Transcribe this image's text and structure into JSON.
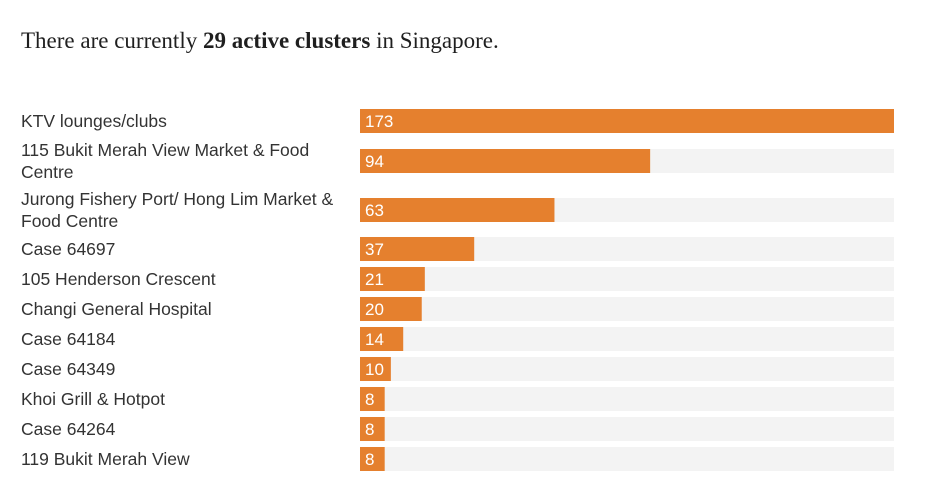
{
  "headline": {
    "prefix": "There are currently ",
    "emphasis": "29 active clusters",
    "suffix": " in Singapore."
  },
  "colors": {
    "bar": "#e5802e",
    "track": "#f3f3f3",
    "label": "#333333"
  },
  "chart_data": {
    "type": "bar",
    "orientation": "horizontal",
    "categories": [
      "KTV lounges/clubs",
      "115 Bukit Merah View Market & Food Centre",
      "Jurong Fishery Port/ Hong Lim Market & Food Centre",
      "Case 64697",
      "105 Henderson Crescent",
      "Changi General Hospital",
      "Case 64184",
      "Case 64349",
      "Khoi Grill & Hotpot",
      "Case 64264",
      "119 Bukit Merah View"
    ],
    "values": [
      173,
      94,
      63,
      37,
      21,
      20,
      14,
      10,
      8,
      8,
      8
    ],
    "xlim": [
      0,
      173
    ],
    "grid": false,
    "data_labels": true
  }
}
